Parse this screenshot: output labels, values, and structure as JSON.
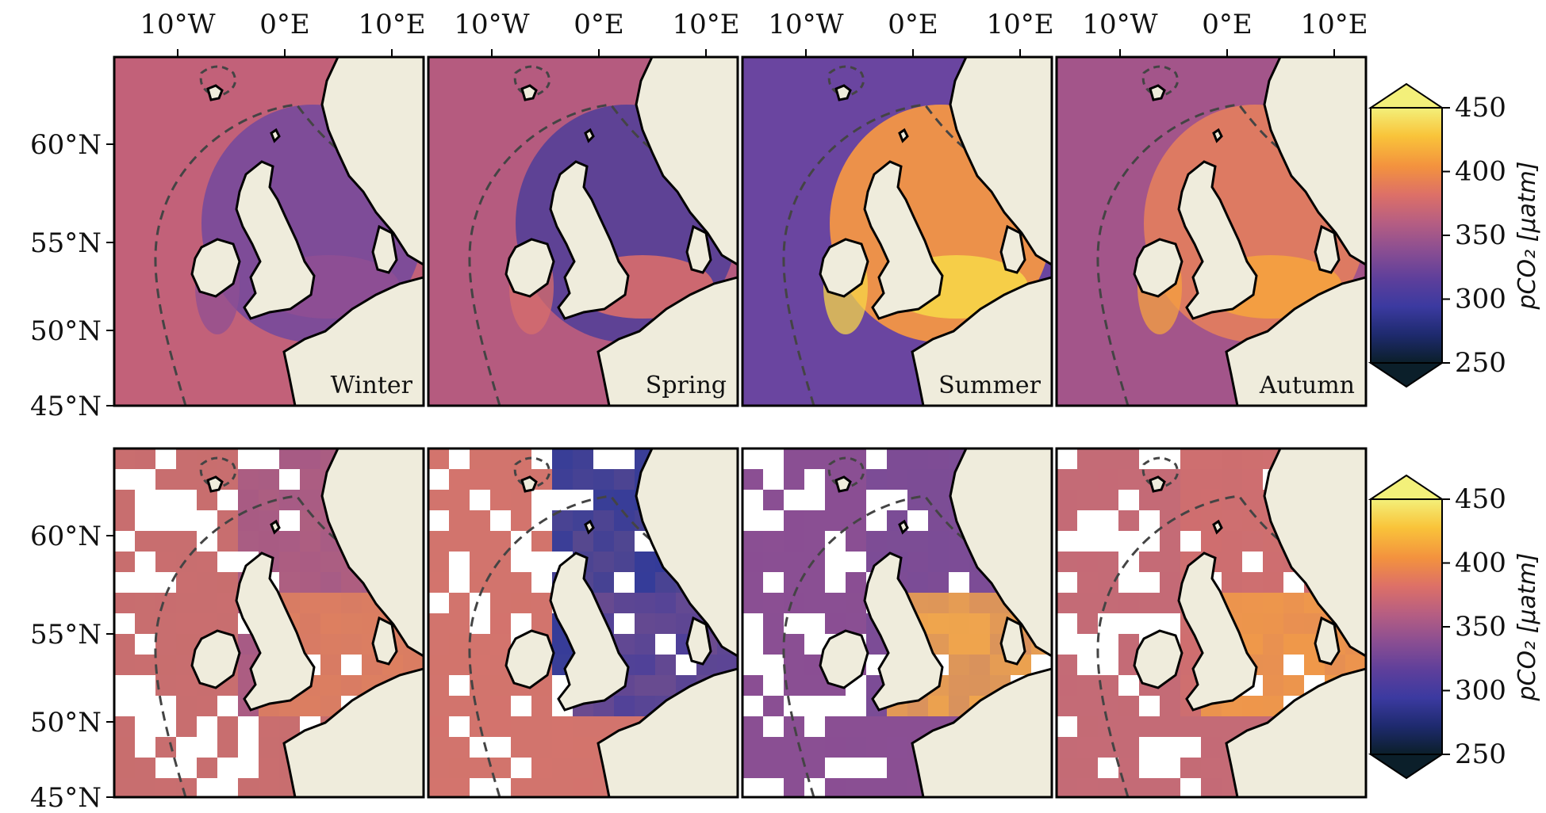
{
  "lon_ticks": [
    "10°W",
    "0°E",
    "10°E"
  ],
  "lat_ticks": [
    "60°N",
    "55°N",
    "50°N",
    "45°N"
  ],
  "seasons": [
    "Winter",
    "Spring",
    "Summer",
    "Autumn"
  ],
  "colorbar": {
    "label": "pCO₂ [μatm]",
    "ticks": [
      "450",
      "400",
      "350",
      "300",
      "250"
    ],
    "min": 250,
    "max": 450,
    "extend": "both",
    "colormap": [
      "#0b1f2a",
      "#1e2a6e",
      "#3b3aa0",
      "#5e3f9b",
      "#8a4e92",
      "#b65e82",
      "#dd7067",
      "#f3923e",
      "#f9c43a",
      "#f3f07a"
    ]
  },
  "colors": {
    "land": "#efecdc",
    "coast": "#000000",
    "shelf_contour": "#444444"
  },
  "panels": {
    "top": [
      {
        "season": "Winter",
        "ocean": "#c26179",
        "north_sea": "#7a4b9a",
        "coastal": "#8f4f93"
      },
      {
        "season": "Spring",
        "ocean": "#b55b7f",
        "north_sea": "#5a4197",
        "coastal": "#d86d6b"
      },
      {
        "season": "Summer",
        "ocean": "#6a45a0",
        "north_sea": "#f39646",
        "coastal": "#f7d548"
      },
      {
        "season": "Autumn",
        "ocean": "#a3558a",
        "north_sea": "#e07c60",
        "coastal": "#f5a23f"
      }
    ],
    "bottom": [
      {
        "season": "Winter",
        "ocean": "#c86e6f",
        "north_sea": "#a55a86",
        "coastal": "#dd8060"
      },
      {
        "season": "Spring",
        "ocean": "#d2746d",
        "north_sea": "#2f3a9a",
        "coastal": "#4a3f9a"
      },
      {
        "season": "Summer",
        "ocean": "#8a4f93",
        "north_sea": "#7a4c96",
        "coastal": "#f3a84a"
      },
      {
        "season": "Autumn",
        "ocean": "#c46b76",
        "north_sea": "#cf6f6f",
        "coastal": "#f19a48"
      }
    ]
  }
}
